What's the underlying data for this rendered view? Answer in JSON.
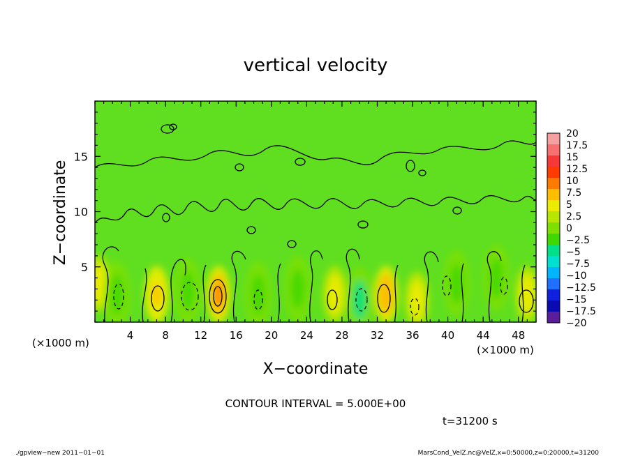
{
  "chart_data": {
    "type": "heatmap",
    "title": "vertical velocity",
    "xlabel": "X−coordinate",
    "ylabel": "Z−coordinate",
    "x_unit_left": "(×1000 m)",
    "x_unit_right": "(×1000 m)",
    "xlim": [
      0,
      50
    ],
    "ylim": [
      0,
      20
    ],
    "x_ticks": [
      4,
      8,
      12,
      16,
      20,
      24,
      28,
      32,
      36,
      40,
      44,
      48
    ],
    "x_minor_step": 1,
    "y_ticks": [
      5,
      10,
      15
    ],
    "y_minor_step": 1,
    "contour_interval_text": "CONTOUR INTERVAL = 5.000E+00",
    "time_text": "t=31200 s",
    "colorbar": {
      "levels": [
        "20",
        "17.5",
        "15",
        "12.5",
        "10",
        "7.5",
        "5",
        "2.5",
        "0",
        "−2.5",
        "−5",
        "−7.5",
        "−10",
        "−12.5",
        "−15",
        "−17.5",
        "−20"
      ],
      "colors": [
        "#f4a0a0",
        "#f77070",
        "#f73838",
        "#ff3b00",
        "#ff7a00",
        "#ffbd00",
        "#ecec00",
        "#b8e600",
        "#7ee000",
        "#3fd800",
        "#00e08a",
        "#00e0d0",
        "#00b4ff",
        "#2070ff",
        "#1020e0",
        "#0a0ab4",
        "#5a1e9c"
      ]
    },
    "background_color": "#5fdf1f",
    "updrafts": [
      {
        "x": 0.4,
        "z": 3.5,
        "strength": 5
      },
      {
        "x": 7.0,
        "z": 2.5,
        "strength": 6
      },
      {
        "x": 14.0,
        "z": 2.5,
        "strength": 10
      },
      {
        "x": 27.2,
        "z": 2.5,
        "strength": 5
      },
      {
        "x": 33.0,
        "z": 2.5,
        "strength": 7
      },
      {
        "x": 36.5,
        "z": 2.0,
        "strength": 5
      },
      {
        "x": 49.0,
        "z": 2.5,
        "strength": 5
      }
    ],
    "downdrafts": [
      {
        "x": 2.5,
        "z": 2.5,
        "strength": -3
      },
      {
        "x": 10.5,
        "z": 2.8,
        "strength": -4
      },
      {
        "x": 18.5,
        "z": 2.5,
        "strength": -3
      },
      {
        "x": 23.0,
        "z": 3.0,
        "strength": -3
      },
      {
        "x": 30.0,
        "z": 2.0,
        "strength": -5
      },
      {
        "x": 41.0,
        "z": 3.5,
        "strength": -4
      },
      {
        "x": 45.5,
        "z": 4.0,
        "strength": -4
      }
    ]
  },
  "footer": {
    "left": "./gpview−new   2011−01−01",
    "right": "MarsCond_VelZ.nc@VelZ,x=0:50000,z=0:20000,t=31200"
  }
}
